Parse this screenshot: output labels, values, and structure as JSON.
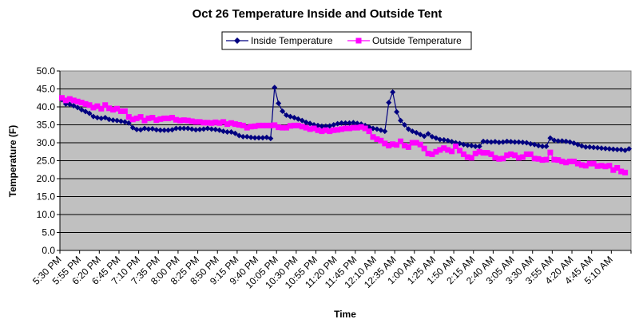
{
  "chart_data": {
    "type": "line",
    "title": "Oct 26 Temperature Inside and Outside Tent",
    "xlabel": "Time",
    "ylabel": "Temperature (F)",
    "ylim": [
      0,
      50
    ],
    "y_ticks": [
      "0.0",
      "5.0",
      "10.0",
      "15.0",
      "20.0",
      "25.0",
      "30.0",
      "35.0",
      "40.0",
      "45.0",
      "50.0"
    ],
    "x_tick_labels": [
      "5:30 PM",
      "5:55 PM",
      "6:20 PM",
      "6:45 PM",
      "7:10 PM",
      "7:35 PM",
      "8:00 PM",
      "8:25 PM",
      "8:50 PM",
      "9:15 PM",
      "9:40 PM",
      "10:05 PM",
      "10:30 PM",
      "10:55 PM",
      "11:20 PM",
      "11:45 PM",
      "12:10 AM",
      "12:35 AM",
      "1:00 AM",
      "1:25 AM",
      "1:50 AM",
      "2:15 AM",
      "2:40 AM",
      "3:05 AM",
      "3:30 AM",
      "3:55 AM",
      "4:20 AM",
      "4:45 AM",
      "5:10 AM"
    ],
    "grid": true,
    "legend_position": "top",
    "background": "#c0c0c0",
    "series": [
      {
        "name": "Inside Temperature",
        "color": "#000080",
        "marker": "diamond",
        "values": [
          42.0,
          40.8,
          40.7,
          40.3,
          39.8,
          39.2,
          38.7,
          38.2,
          37.3,
          37.0,
          36.8,
          37.0,
          36.5,
          36.3,
          36.2,
          36.0,
          35.8,
          35.5,
          34.2,
          33.7,
          33.6,
          34.0,
          33.8,
          33.9,
          33.6,
          33.5,
          33.5,
          33.5,
          33.6,
          34.0,
          34.0,
          34.0,
          34.0,
          33.8,
          33.6,
          33.7,
          33.8,
          34.0,
          33.8,
          33.7,
          33.5,
          33.2,
          33.0,
          33.0,
          32.6,
          32.0,
          31.7,
          31.7,
          31.5,
          31.4,
          31.4,
          31.4,
          31.5,
          31.2,
          45.4,
          41.0,
          38.8,
          37.7,
          37.3,
          37.0,
          36.6,
          36.2,
          35.7,
          35.4,
          35.0,
          34.8,
          34.6,
          34.6,
          34.7,
          35.0,
          35.3,
          35.5,
          35.5,
          35.5,
          35.6,
          35.4,
          35.2,
          34.8,
          34.4,
          34.0,
          33.8,
          33.5,
          33.2,
          41.2,
          44.1,
          38.6,
          36.2,
          35.0,
          33.8,
          33.2,
          32.8,
          32.3,
          31.8,
          32.5,
          31.7,
          31.3,
          30.9,
          30.8,
          30.6,
          30.3,
          30.0,
          29.8,
          29.5,
          29.3,
          29.2,
          29.0,
          29.0,
          30.4,
          30.3,
          30.2,
          30.3,
          30.1,
          30.2,
          30.4,
          30.3,
          30.2,
          30.2,
          30.1,
          30.0,
          29.7,
          29.5,
          29.2,
          29.0,
          29.0,
          31.3,
          30.7,
          30.5,
          30.5,
          30.4,
          30.2,
          29.9,
          29.5,
          29.1,
          28.8,
          28.8,
          28.7,
          28.6,
          28.5,
          28.4,
          28.3,
          28.2,
          28.1,
          28.1,
          27.9,
          28.3
        ]
      },
      {
        "name": "Outside Temperature",
        "color": "#ff00ff",
        "marker": "square",
        "values": [
          42.5,
          41.8,
          42.2,
          41.8,
          41.5,
          41.2,
          40.8,
          40.5,
          39.8,
          40.2,
          39.5,
          40.5,
          39.6,
          39.2,
          39.5,
          38.8,
          38.8,
          37.2,
          36.5,
          36.8,
          37.2,
          36.2,
          36.8,
          37.0,
          36.3,
          36.6,
          36.8,
          36.8,
          37.0,
          36.4,
          36.2,
          36.3,
          36.2,
          36.0,
          35.8,
          35.8,
          35.6,
          35.6,
          35.5,
          35.7,
          35.5,
          35.8,
          35.2,
          35.5,
          35.2,
          35.0,
          34.8,
          34.2,
          34.5,
          34.6,
          34.8,
          34.8,
          34.8,
          34.8,
          34.9,
          34.3,
          34.2,
          34.2,
          34.7,
          34.8,
          34.8,
          34.5,
          34.2,
          33.8,
          34.0,
          33.5,
          33.2,
          33.5,
          33.2,
          33.5,
          33.6,
          33.8,
          34.0,
          34.0,
          34.2,
          34.2,
          34.4,
          34.0,
          33.2,
          31.6,
          31.0,
          30.6,
          29.8,
          29.2,
          29.6,
          29.4,
          30.4,
          29.2,
          28.8,
          30.0,
          30.0,
          29.5,
          28.4,
          27.0,
          26.8,
          27.5,
          28.0,
          28.5,
          28.0,
          27.6,
          29.0,
          27.8,
          26.8,
          26.0,
          25.8,
          27.0,
          27.5,
          27.2,
          27.2,
          26.8,
          25.8,
          25.5,
          25.6,
          26.5,
          26.8,
          26.5,
          25.8,
          26.0,
          26.8,
          26.8,
          25.6,
          25.5,
          25.2,
          25.3,
          27.3,
          25.3,
          25.2,
          24.8,
          24.5,
          24.8,
          24.8,
          24.2,
          23.8,
          23.6,
          24.2,
          24.2,
          23.5,
          23.6,
          23.4,
          23.6,
          22.4,
          23.0,
          22.0,
          21.7
        ]
      }
    ]
  }
}
